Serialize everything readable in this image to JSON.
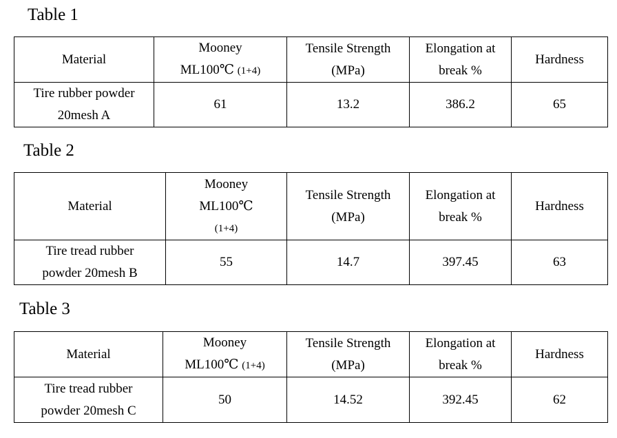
{
  "tables": [
    {
      "caption": "Table 1",
      "headers": {
        "material": "Material",
        "mooney_line1": "Mooney",
        "mooney_line2_main": "ML100℃",
        "mooney_line2_small": "(1+4)",
        "tensile_line1": "Tensile Strength",
        "tensile_line2": "(MPa)",
        "elongation_line1": "Elongation at",
        "elongation_line2": "break %",
        "hardness": "Hardness"
      },
      "row": {
        "material_line1": "Tire rubber powder",
        "material_line2": "20mesh A",
        "mooney": "61",
        "tensile": "13.2",
        "elongation": "386.2",
        "hardness": "65"
      }
    },
    {
      "caption": "Table 2",
      "headers": {
        "material": "Material",
        "mooney_line1": "Mooney",
        "mooney_line2": "ML100℃",
        "mooney_line3": "(1+4)",
        "tensile_line1": "Tensile Strength",
        "tensile_line2": "(MPa)",
        "elongation_line1": "Elongation at",
        "elongation_line2": "break %",
        "hardness": "Hardness"
      },
      "row": {
        "material_line1": "Tire tread rubber",
        "material_line2": "powder 20mesh B",
        "mooney": "55",
        "tensile": "14.7",
        "elongation": "397.45",
        "hardness": "63"
      }
    },
    {
      "caption": "Table 3",
      "headers": {
        "material": "Material",
        "mooney_line1": "Mooney",
        "mooney_line2_main": "ML100℃",
        "mooney_line2_small": "(1+4)",
        "tensile_line1": "Tensile Strength",
        "tensile_line2": "(MPa)",
        "elongation_line1": "Elongation at",
        "elongation_line2": "break %",
        "hardness": "Hardness"
      },
      "row": {
        "material_line1": "Tire tread rubber",
        "material_line2": "powder 20mesh C",
        "mooney": "50",
        "tensile": "14.52",
        "elongation": "392.45",
        "hardness": "62"
      }
    }
  ]
}
